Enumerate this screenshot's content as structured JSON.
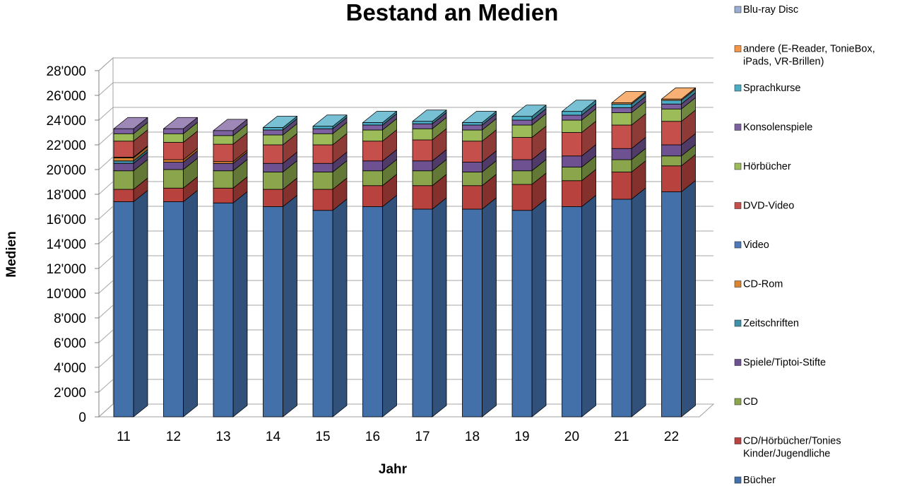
{
  "chart_data": {
    "type": "bar",
    "stacked": true,
    "three_d": true,
    "title": "Bestand an Medien",
    "xlabel": "Jahr",
    "ylabel": "Medien",
    "categories": [
      "11",
      "12",
      "13",
      "14",
      "15",
      "16",
      "17",
      "18",
      "19",
      "20",
      "21",
      "22"
    ],
    "ylim": [
      0,
      28000
    ],
    "yticks": [
      "0",
      "2'000",
      "4'000",
      "6'000",
      "8'000",
      "10'000",
      "12'000",
      "14'000",
      "16'000",
      "18'000",
      "20'000",
      "22'000",
      "24'000",
      "26'000",
      "28'000"
    ],
    "grid": true,
    "legend_position": "right",
    "series": [
      {
        "name": "Bücher",
        "color": "#4470aa",
        "values": [
          17400,
          17400,
          17300,
          17000,
          16700,
          17000,
          16800,
          16800,
          16700,
          17000,
          17600,
          18200
        ]
      },
      {
        "name": "CD/Hörbücher/Tonies Kinder/Jugendliche",
        "color": "#b8423d",
        "values": [
          1000,
          1100,
          1200,
          1400,
          1700,
          1700,
          1900,
          1900,
          2100,
          2100,
          2200,
          2100
        ]
      },
      {
        "name": "CD",
        "color": "#8aa54c",
        "values": [
          1500,
          1500,
          1400,
          1400,
          1400,
          1200,
          1200,
          1100,
          1100,
          1100,
          1000,
          800
        ]
      },
      {
        "name": "Spiele/Tiptoi-Stifte",
        "color": "#6e5190",
        "values": [
          600,
          600,
          600,
          700,
          700,
          800,
          800,
          800,
          900,
          900,
          900,
          900
        ]
      },
      {
        "name": "Zeitschriften",
        "color": "#3f90a8",
        "values": [
          200,
          0,
          0,
          0,
          0,
          0,
          0,
          0,
          0,
          0,
          0,
          0
        ]
      },
      {
        "name": "CD-Rom",
        "color": "#d98532",
        "values": [
          250,
          200,
          150,
          0,
          0,
          0,
          0,
          0,
          0,
          0,
          0,
          0
        ]
      },
      {
        "name": "Video",
        "color": "#4f79b8",
        "values": [
          50,
          0,
          0,
          0,
          0,
          0,
          0,
          0,
          0,
          0,
          0,
          0
        ]
      },
      {
        "name": "DVD-Video",
        "color": "#c5504b",
        "values": [
          1300,
          1400,
          1400,
          1500,
          1500,
          1600,
          1700,
          1700,
          1800,
          1900,
          1900,
          1900
        ]
      },
      {
        "name": "Hörbücher",
        "color": "#9cbb59",
        "values": [
          600,
          700,
          700,
          800,
          900,
          900,
          900,
          900,
          1000,
          1000,
          1000,
          1000
        ]
      },
      {
        "name": "Konsolenspiele",
        "color": "#7d60a0",
        "values": [
          400,
          400,
          400,
          400,
          400,
          400,
          400,
          400,
          400,
          400,
          400,
          400
        ]
      },
      {
        "name": "Sprachkurse",
        "color": "#4bacc6",
        "values": [
          0,
          0,
          0,
          200,
          200,
          200,
          200,
          200,
          300,
          300,
          300,
          300
        ]
      },
      {
        "name": "andere (E-Reader, TonieBox, iPads, VR-Brillen)",
        "color": "#f79646",
        "values": [
          0,
          0,
          0,
          0,
          0,
          0,
          0,
          0,
          0,
          0,
          100,
          100
        ]
      },
      {
        "name": "Blu-ray Disc",
        "color": "#9aaed2",
        "values": [
          0,
          0,
          0,
          0,
          0,
          0,
          0,
          0,
          0,
          0,
          0,
          0
        ]
      }
    ],
    "legend_order": [
      "Blu-ray Disc",
      "andere (E-Reader, TonieBox, iPads, VR-Brillen)",
      "Sprachkurse",
      "Konsolenspiele",
      "Hörbücher",
      "DVD-Video",
      "Video",
      "CD-Rom",
      "Zeitschriften",
      "Spiele/Tiptoi-Stifte",
      "CD",
      "CD/Hörbücher/Tonies Kinder/Jugendliche",
      "Bücher"
    ]
  }
}
